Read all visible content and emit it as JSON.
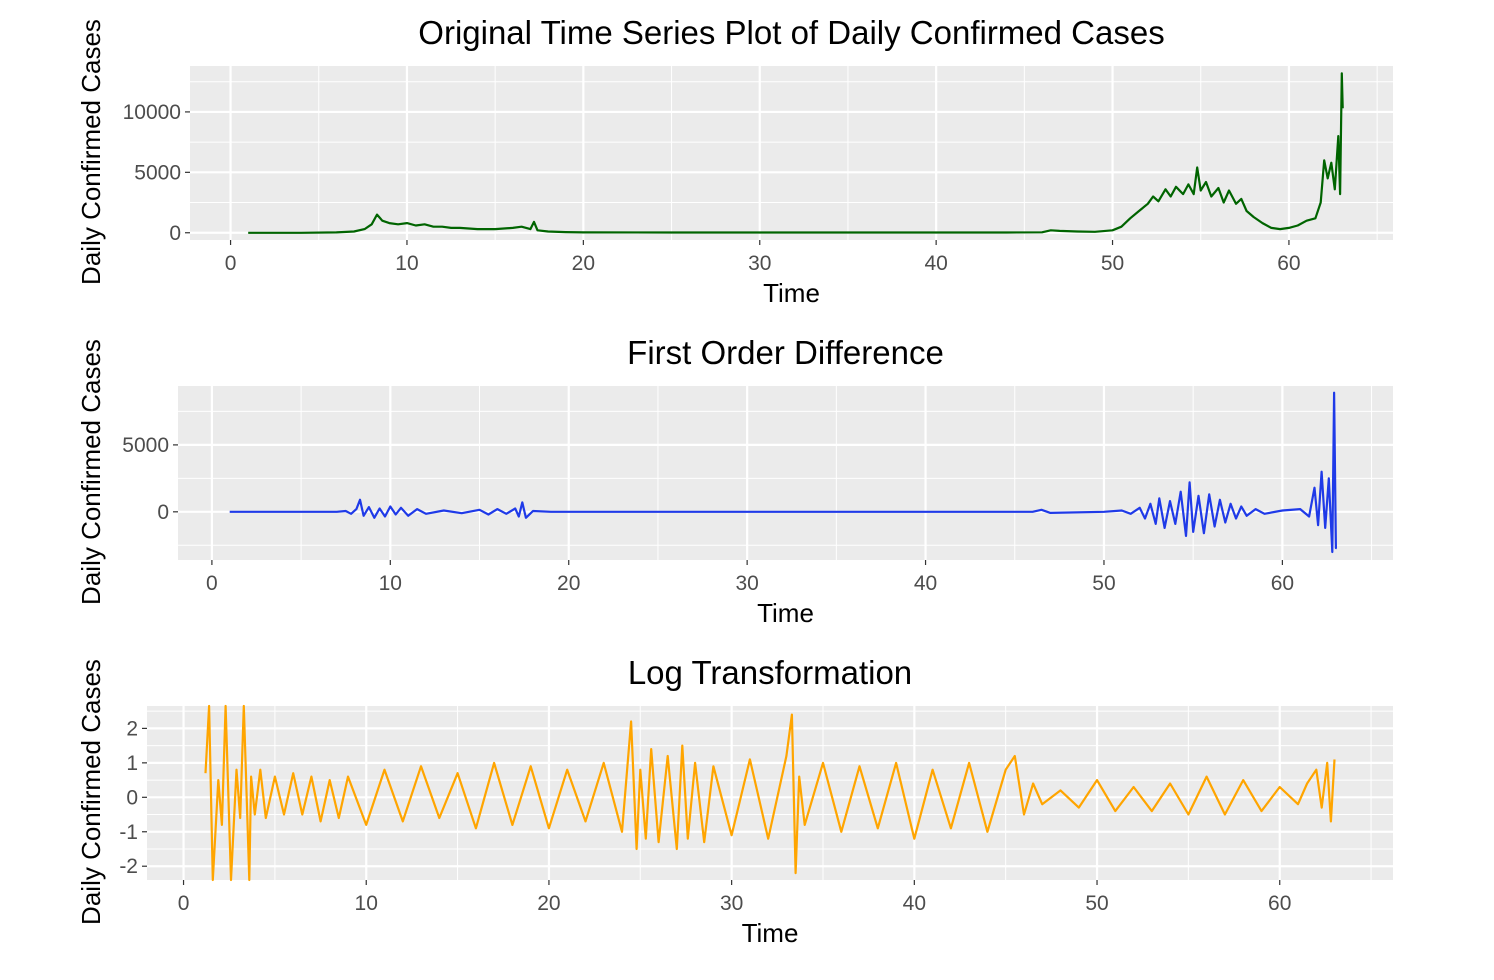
{
  "chart_data": [
    {
      "type": "line",
      "title": "Original Time Series Plot of Daily Confirmed Cases",
      "xlabel": "Time",
      "ylabel": "Daily Confirmed Cases",
      "xlim": [
        -2.3,
        65.9
      ],
      "ylim": [
        -600,
        13800
      ],
      "xticks": [
        0,
        10,
        20,
        30,
        40,
        50,
        60
      ],
      "yticks": [
        0,
        5000,
        10000
      ],
      "grid": true,
      "line_color": "#006400",
      "series": [
        {
          "x": [
            1,
            4,
            6,
            7,
            7.6,
            8,
            8.3,
            8.6,
            9,
            9.5,
            10,
            10.5,
            11,
            11.5,
            12,
            12.5,
            13,
            14,
            15,
            16,
            16.5,
            17,
            17.2,
            17.4,
            18,
            19,
            20,
            25,
            30,
            35,
            40,
            44,
            46,
            46.5,
            47,
            48,
            49,
            50,
            50.5,
            51,
            51.5,
            52,
            52.3,
            52.6,
            53,
            53.3,
            53.6,
            54,
            54.3,
            54.6,
            54.8,
            55,
            55.3,
            55.6,
            56,
            56.3,
            56.6,
            57,
            57.3,
            57.6,
            58,
            58.5,
            59,
            59.5,
            60,
            60.5,
            61,
            61.5,
            61.8,
            62,
            62.2,
            62.4,
            62.6,
            62.8,
            62.9,
            63,
            63.05
          ],
          "y": [
            0,
            0,
            30,
            100,
            300,
            700,
            1500,
            1000,
            800,
            700,
            800,
            600,
            700,
            500,
            500,
            400,
            400,
            300,
            300,
            400,
            500,
            300,
            900,
            200,
            100,
            50,
            30,
            20,
            20,
            20,
            20,
            20,
            40,
            200,
            150,
            100,
            80,
            200,
            500,
            1200,
            1800,
            2400,
            3000,
            2600,
            3600,
            3000,
            3800,
            3200,
            4000,
            3200,
            5400,
            3500,
            4200,
            3000,
            3700,
            2500,
            3500,
            2400,
            2800,
            1800,
            1300,
            800,
            400,
            300,
            400,
            600,
            1000,
            1200,
            2500,
            6000,
            4500,
            5800,
            3600,
            8000,
            3200,
            13200,
            10300
          ]
        }
      ]
    },
    {
      "type": "line",
      "title": "First Order Difference",
      "xlabel": "Time",
      "ylabel": "Daily Confirmed Cases",
      "xlim": [
        -1.9,
        66.2
      ],
      "ylim": [
        -3600,
        9400
      ],
      "xticks": [
        0,
        10,
        20,
        30,
        40,
        50,
        60
      ],
      "yticks": [
        0,
        5000
      ],
      "grid": true,
      "line_color": "#1f3ae8",
      "series": [
        {
          "x": [
            1,
            7,
            7.5,
            7.8,
            8.1,
            8.3,
            8.5,
            8.8,
            9.1,
            9.4,
            9.7,
            10,
            10.3,
            10.6,
            11,
            11.5,
            12,
            13,
            14,
            15,
            15.5,
            16,
            16.5,
            17,
            17.2,
            17.4,
            17.6,
            18,
            19,
            30,
            46,
            46.5,
            47,
            50,
            51,
            51.5,
            52,
            52.3,
            52.6,
            52.9,
            53.1,
            53.4,
            53.7,
            54,
            54.3,
            54.6,
            54.8,
            55,
            55.3,
            55.6,
            55.9,
            56.2,
            56.5,
            56.8,
            57.1,
            57.4,
            57.7,
            58,
            58.5,
            59,
            60,
            61,
            61.5,
            61.8,
            62,
            62.2,
            62.4,
            62.6,
            62.8,
            62.9,
            63,
            63.05
          ],
          "y": [
            0,
            0,
            60,
            -150,
            200,
            900,
            -300,
            350,
            -450,
            250,
            -350,
            400,
            -200,
            300,
            -300,
            200,
            -150,
            100,
            -100,
            150,
            -200,
            200,
            -150,
            250,
            -350,
            700,
            -450,
            60,
            0,
            0,
            0,
            150,
            -80,
            0,
            100,
            -150,
            300,
            -500,
            600,
            -900,
            1000,
            -1200,
            800,
            -900,
            1500,
            -1800,
            2200,
            -1500,
            1200,
            -1600,
            1300,
            -1100,
            900,
            -800,
            600,
            -500,
            400,
            -300,
            200,
            -150,
            100,
            200,
            -350,
            1800,
            -1000,
            3000,
            -1200,
            2500,
            -3000,
            8900,
            -2700,
            -2700
          ]
        }
      ]
    },
    {
      "type": "line",
      "title": "Log Transformation",
      "xlabel": "Time",
      "ylabel": "Daily Confirmed Cases",
      "xlim": [
        -2.0,
        66.2
      ],
      "ylim": [
        -2.4,
        2.65
      ],
      "xticks": [
        0,
        10,
        20,
        30,
        40,
        50,
        60
      ],
      "yticks": [
        2,
        1,
        0,
        -1,
        -2
      ],
      "grid": true,
      "line_color": "#ffa500",
      "series": [
        {
          "x": [
            1.2,
            1.4,
            1.6,
            1.9,
            2.1,
            2.3,
            2.6,
            2.9,
            3.1,
            3.3,
            3.6,
            3.7,
            3.9,
            4.2,
            4.5,
            5,
            5.5,
            6,
            6.5,
            7,
            7.5,
            8,
            8.5,
            9,
            10,
            11,
            12,
            13,
            14,
            15,
            16,
            17,
            18,
            19,
            20,
            21,
            22,
            23,
            24,
            24.5,
            24.8,
            25,
            25.3,
            25.6,
            26,
            26.5,
            27,
            27.3,
            27.6,
            28,
            28.5,
            29,
            30,
            31,
            32,
            33,
            33.3,
            33.5,
            33.7,
            34,
            35,
            36,
            37,
            38,
            39,
            40,
            41,
            42,
            43,
            44,
            45,
            45.5,
            46,
            46.5,
            47,
            48,
            49,
            50,
            51,
            52,
            53,
            54,
            55,
            56,
            57,
            58,
            59,
            60,
            61,
            61.5,
            62,
            62.3,
            62.6,
            62.8,
            63
          ],
          "y": [
            0.7,
            2.7,
            -2.4,
            0.5,
            -0.8,
            2.7,
            -2.4,
            0.8,
            -0.6,
            2.7,
            -2.4,
            0.6,
            -0.5,
            0.8,
            -0.6,
            0.6,
            -0.5,
            0.7,
            -0.5,
            0.6,
            -0.7,
            0.5,
            -0.6,
            0.6,
            -0.8,
            0.8,
            -0.7,
            0.9,
            -0.6,
            0.7,
            -0.9,
            1.0,
            -0.8,
            0.9,
            -0.9,
            0.8,
            -0.7,
            1.0,
            -1.0,
            2.2,
            -1.5,
            0.8,
            -1.2,
            1.4,
            -1.3,
            1.2,
            -1.5,
            1.5,
            -1.2,
            1.0,
            -1.3,
            0.9,
            -1.1,
            1.1,
            -1.2,
            1.2,
            2.4,
            -2.2,
            0.6,
            -0.8,
            1.0,
            -1.0,
            0.9,
            -0.9,
            1.0,
            -1.2,
            0.8,
            -0.9,
            1.0,
            -1.0,
            0.8,
            1.2,
            -0.5,
            0.4,
            -0.2,
            0.2,
            -0.3,
            0.5,
            -0.4,
            0.3,
            -0.4,
            0.4,
            -0.5,
            0.6,
            -0.5,
            0.5,
            -0.4,
            0.3,
            -0.2,
            0.4,
            0.8,
            -0.3,
            1.0,
            -0.7,
            1.1
          ]
        }
      ]
    }
  ]
}
